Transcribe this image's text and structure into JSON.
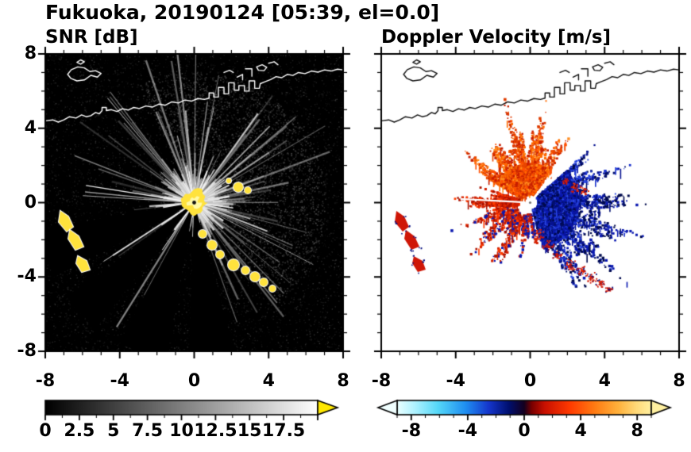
{
  "title": "Fukuoka, 20190124 [05:39, el=0.0]",
  "panels": {
    "snr": {
      "title": "SNR [dB]"
    },
    "velocity": {
      "title": "Doppler Velocity [m/s]"
    }
  },
  "labels": {
    "y": [
      "8",
      "4",
      "0",
      "-4",
      "-8"
    ],
    "x": [
      "-8",
      "-4",
      "0",
      "4",
      "8"
    ],
    "cb_snr": [
      "0",
      "2.5",
      "5",
      "7.5",
      "10",
      "12.5",
      "15",
      "17.5"
    ],
    "cb_vel": [
      "-8",
      "-4",
      "0",
      "4",
      "8"
    ]
  },
  "chart_data": {
    "type": "heatmap",
    "title": "Fukuoka, 20190124 [05:39, el=0.0]",
    "panels": [
      {
        "name": "SNR",
        "title": "SNR [dB]",
        "xlim": [
          -8,
          8
        ],
        "ylim": [
          -8,
          8
        ],
        "x_ticks": [
          -8,
          -4,
          0,
          4,
          8
        ],
        "y_ticks": [
          -8,
          -4,
          0,
          4,
          8
        ],
        "minor_tick_step": 1,
        "units": "dB",
        "colorbar_ticks": [
          0,
          2.5,
          5,
          7.5,
          10,
          12.5,
          15,
          17.5
        ],
        "colorbar_range": [
          0,
          20
        ],
        "colormap": "black-to-white grayscale with yellow over-range arrow",
        "description": "Radar PPI of SNR at Fukuoka: bright radial streaks emanate from the radar at the origin over a black low-SNR field; saturated yellow echoes at the radar site, along a clutter arc to the lower right and on small islands to the left; coastline overlaid in white."
      },
      {
        "name": "DopplerVelocity",
        "title": "Doppler Velocity [m/s]",
        "xlim": [
          -8,
          8
        ],
        "ylim": [
          -8,
          8
        ],
        "x_ticks": [
          -8,
          -4,
          0,
          4,
          8
        ],
        "y_ticks": [
          -8,
          -4,
          0,
          4,
          8
        ],
        "minor_tick_step": 1,
        "units": "m/s",
        "colorbar_ticks": [
          -8,
          -4,
          0,
          4,
          8
        ],
        "colorbar_range": [
          -9,
          9
        ],
        "colormap": "diverging cyan-blue-navy to red-orange-yellow with out-of-range arrows",
        "description": "Doppler velocity around the radar: warm (red/orange) approaching fan to the upper-left/north of the radar, dark blue receding fan to the east and lower-right, scattered red clutter to the west and lower-left; coastline in black on white."
      }
    ],
    "coastline": [
      {
        "closed": false,
        "points": [
          [
            -8,
            4.4
          ],
          [
            -7.6,
            4.45
          ],
          [
            -7.3,
            4.33
          ],
          [
            -7.0,
            4.45
          ],
          [
            -6.7,
            4.62
          ],
          [
            -6.35,
            4.55
          ],
          [
            -6.05,
            4.72
          ],
          [
            -5.8,
            4.62
          ],
          [
            -5.55,
            4.68
          ],
          [
            -5.3,
            4.85
          ],
          [
            -5.1,
            4.78
          ],
          [
            -4.95,
            4.95
          ],
          [
            -4.95,
            5.12
          ],
          [
            -4.72,
            5.12
          ],
          [
            -4.72,
            4.95
          ],
          [
            -4.45,
            5.0
          ],
          [
            -4.15,
            4.9
          ],
          [
            -3.85,
            5.05
          ],
          [
            -3.55,
            4.98
          ],
          [
            -3.25,
            5.12
          ],
          [
            -2.95,
            5.06
          ],
          [
            -2.6,
            5.2
          ],
          [
            -2.25,
            5.14
          ],
          [
            -1.9,
            5.3
          ],
          [
            -1.55,
            5.24
          ],
          [
            -1.2,
            5.42
          ],
          [
            -0.85,
            5.36
          ],
          [
            -0.5,
            5.52
          ],
          [
            -0.15,
            5.46
          ],
          [
            0.2,
            5.6
          ],
          [
            0.55,
            5.55
          ],
          [
            0.8,
            5.62
          ],
          [
            0.8,
            5.9
          ],
          [
            1.05,
            5.9
          ],
          [
            1.05,
            5.68
          ],
          [
            1.3,
            5.68
          ],
          [
            1.3,
            6.2
          ],
          [
            1.6,
            6.2
          ],
          [
            1.6,
            5.85
          ],
          [
            1.85,
            5.85
          ],
          [
            1.85,
            6.45
          ],
          [
            2.15,
            6.45
          ],
          [
            2.15,
            6.05
          ],
          [
            2.4,
            6.05
          ],
          [
            2.4,
            6.3
          ],
          [
            2.7,
            6.3
          ],
          [
            2.7,
            6.0
          ],
          [
            2.95,
            6.0
          ],
          [
            2.95,
            6.55
          ],
          [
            3.25,
            6.55
          ],
          [
            3.25,
            6.15
          ],
          [
            3.5,
            6.15
          ],
          [
            3.55,
            6.4
          ],
          [
            3.8,
            6.5
          ],
          [
            4.1,
            6.62
          ],
          [
            4.4,
            6.78
          ],
          [
            4.7,
            6.72
          ],
          [
            5.0,
            6.9
          ],
          [
            5.3,
            6.84
          ],
          [
            5.6,
            7.0
          ],
          [
            5.95,
            6.94
          ],
          [
            6.3,
            7.08
          ],
          [
            6.65,
            7.02
          ],
          [
            7.0,
            7.14
          ],
          [
            7.35,
            7.08
          ],
          [
            7.7,
            7.18
          ],
          [
            8,
            7.14
          ]
        ]
      },
      {
        "closed": true,
        "points": [
          [
            -6.8,
            6.9
          ],
          [
            -6.6,
            7.15
          ],
          [
            -6.25,
            7.3
          ],
          [
            -5.9,
            7.25
          ],
          [
            -5.6,
            7.05
          ],
          [
            -5.3,
            7.1
          ],
          [
            -5.0,
            6.95
          ],
          [
            -5.2,
            6.75
          ],
          [
            -5.55,
            6.85
          ],
          [
            -5.9,
            6.6
          ],
          [
            -6.3,
            6.55
          ],
          [
            -6.62,
            6.68
          ]
        ]
      },
      {
        "closed": true,
        "points": [
          [
            -6.3,
            7.55
          ],
          [
            -6.1,
            7.68
          ],
          [
            -5.9,
            7.58
          ],
          [
            -6.1,
            7.45
          ]
        ]
      },
      {
        "closed": false,
        "points": [
          [
            1.6,
            7.0
          ],
          [
            1.9,
            7.12
          ],
          [
            2.1,
            7.0
          ]
        ]
      },
      {
        "closed": false,
        "points": [
          [
            2.3,
            6.75
          ],
          [
            2.6,
            6.9
          ],
          [
            2.6,
            6.6
          ]
        ]
      },
      {
        "closed": false,
        "points": [
          [
            2.75,
            7.2
          ],
          [
            3.1,
            7.2
          ],
          [
            3.1,
            6.8
          ]
        ]
      },
      {
        "closed": true,
        "points": [
          [
            3.35,
            7.3
          ],
          [
            3.65,
            7.42
          ],
          [
            3.9,
            7.28
          ],
          [
            3.75,
            7.1
          ],
          [
            3.45,
            7.12
          ]
        ]
      },
      {
        "closed": false,
        "points": [
          [
            4.0,
            7.5
          ],
          [
            4.3,
            7.58
          ],
          [
            4.5,
            7.42
          ]
        ]
      }
    ],
    "snr_field": {
      "speckle_count": 9000,
      "haze": {
        "a0": -115,
        "a1": 50,
        "r": 165,
        "count": 2600
      },
      "ray_count": 175,
      "core_spokes": 260,
      "long_rays": [
        {
          "a": 189,
          "len": 138,
          "w": 1.3
        },
        {
          "a": 147,
          "len": 136,
          "w": 0.9
        },
        {
          "a": 124,
          "len": 72,
          "w": 1.0
        }
      ],
      "shadow_wedges": [
        [
          75,
          92
        ],
        [
          100,
          118
        ],
        [
          128,
          143
        ],
        [
          152,
          170
        ]
      ],
      "center": {
        "r_out": 20,
        "r_in": 9,
        "fill": "#ffe23c",
        "inner": "#fff9a6"
      },
      "chain": [
        [
          198,
          227,
          5
        ],
        [
          210,
          241,
          6
        ],
        [
          220,
          253,
          5
        ],
        [
          237,
          266,
          7
        ],
        [
          252,
          273,
          5
        ],
        [
          264,
          281,
          6
        ],
        [
          275,
          288,
          5
        ],
        [
          286,
          296,
          4
        ],
        [
          243,
          168,
          6
        ],
        [
          255,
          172,
          4
        ],
        [
          231,
          160,
          3
        ]
      ],
      "islands": [
        [
          [
            19,
            198
          ],
          [
            29,
            205
          ],
          [
            35,
            218
          ],
          [
            27,
            224
          ],
          [
            17,
            212
          ]
        ],
        [
          [
            31,
            222
          ],
          [
            42,
            230
          ],
          [
            48,
            243
          ],
          [
            38,
            247
          ],
          [
            29,
            233
          ]
        ],
        [
          [
            41,
            255
          ],
          [
            52,
            261
          ],
          [
            56,
            272
          ],
          [
            46,
            275
          ],
          [
            39,
            264
          ]
        ]
      ],
      "blob_fill": "#ffe23c",
      "blob_stroke": "#ffffff"
    },
    "vel_field": {
      "sectors": [
        {
          "a0": -152,
          "a1": -58,
          "r0": 10,
          "r1": 82,
          "solid_r": 50,
          "base": "#ef5a06",
          "n": 2800,
          "colors": [
            "#ff6a00",
            "#e84600",
            "#ff8c1e",
            "#d23200",
            "#ff4f00",
            "#c81e00"
          ]
        },
        {
          "a0": -118,
          "a1": -70,
          "r0": 70,
          "r1": 102,
          "solid_r": 0,
          "base": "",
          "n": 420,
          "colors": [
            "#e03c00",
            "#c81e00",
            "#ff6a00"
          ]
        },
        {
          "a0": -42,
          "a1": 74,
          "r0": 10,
          "r1": 102,
          "solid_r": 62,
          "base": "#0a14a2",
          "n": 3400,
          "colors": [
            "#0a18b0",
            "#031070",
            "#1b33cc",
            "#000a4e",
            "#2a46e0",
            "#061290"
          ]
        },
        {
          "a0": -5,
          "a1": 58,
          "r0": 90,
          "r1": 122,
          "solid_r": 0,
          "base": "",
          "n": 420,
          "colors": [
            "#0a18b0",
            "#000a4e"
          ]
        },
        {
          "a0": 168,
          "a1": 197,
          "r0": 14,
          "r1": 78,
          "solid_r": 0,
          "base": "",
          "n": 650,
          "colors": [
            "#d42000",
            "#ff3c00",
            "#aa1200"
          ]
        },
        {
          "a0": 112,
          "a1": 166,
          "r0": 18,
          "r1": 80,
          "solid_r": 0,
          "base": "",
          "n": 750,
          "colors": [
            "#d42000",
            "#ff3c00",
            "#b01400",
            "#0a18b0"
          ]
        },
        {
          "a0": 80,
          "a1": 110,
          "r0": 15,
          "r1": 55,
          "solid_r": 0,
          "base": "",
          "n": 260,
          "colors": [
            "#0a18b0",
            "#d42000"
          ]
        }
      ],
      "white_slits": [
        {
          "a": 183,
          "len": 88,
          "w": 2.2
        },
        {
          "a": -52,
          "len": 75,
          "w": 2.5
        }
      ],
      "chain_colors": [
        "#d01808",
        "#0a1280",
        "#ff3c00"
      ],
      "island_fill": "#cf1606",
      "island_speck": "#0a1280",
      "center_r": 6
    },
    "colorbars": [
      {
        "range": [
          0,
          20
        ],
        "minor_step": 1.25,
        "major_step": 2.5,
        "stops": [
          [
            0,
            "#000000"
          ],
          [
            1,
            "#ffffff"
          ]
        ],
        "arrows": [
          {
            "side": "right",
            "color": "#ffe800",
            "len": 25
          }
        ]
      },
      {
        "range": [
          -9,
          9
        ],
        "minor_step": 1,
        "major_step": 4,
        "stops": [
          [
            0,
            "#eaffff"
          ],
          [
            0.07,
            "#aef2ff"
          ],
          [
            0.16,
            "#55d8f8"
          ],
          [
            0.27,
            "#1f8ef2"
          ],
          [
            0.36,
            "#1536cc"
          ],
          [
            0.44,
            "#000f6e"
          ],
          [
            0.5,
            "#14001e"
          ],
          [
            0.53,
            "#7a0000"
          ],
          [
            0.58,
            "#c81000"
          ],
          [
            0.68,
            "#ff3a00"
          ],
          [
            0.78,
            "#ff7d14"
          ],
          [
            0.87,
            "#ffb13c"
          ],
          [
            0.94,
            "#ffd978"
          ],
          [
            1,
            "#fff0a0"
          ]
        ],
        "arrows": [
          {
            "side": "left",
            "color": "#f0ffff",
            "len": 24
          },
          {
            "side": "right",
            "color": "#fff0a0",
            "len": 24
          }
        ]
      }
    ]
  }
}
